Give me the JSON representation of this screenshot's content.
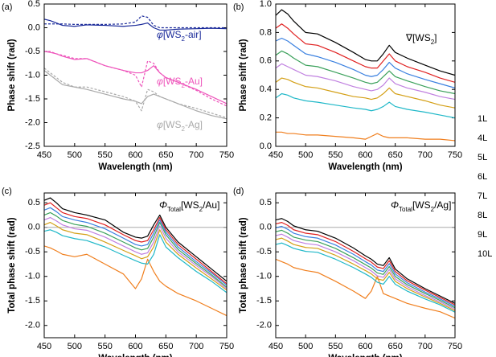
{
  "chart_data": [
    {
      "type": "line",
      "panel_label": "(a)",
      "xlabel": "Wavelength (nm)",
      "ylabel": "Phase shift (rad)",
      "x": [
        450,
        460,
        470,
        480,
        500,
        520,
        550,
        580,
        600,
        610,
        620,
        630,
        640,
        650,
        670,
        700,
        725,
        750
      ],
      "xlim": [
        450,
        750
      ],
      "xticks": [
        450,
        500,
        550,
        600,
        650,
        700,
        750
      ],
      "ylim": [
        -2.5,
        0.5
      ],
      "yticks": [
        -2.5,
        {
          "value": -2,
          "label": "-2.0"
        },
        -1.5,
        {
          "value": -1,
          "label": "-1.0"
        },
        -0.5,
        {
          "value": 0,
          "label": "0.0"
        },
        0.5
      ],
      "series": [
        {
          "color": "#1a2a9a",
          "dashed": false,
          "values": [
            0.18,
            0.15,
            0.1,
            0.05,
            0.03,
            0.06,
            0.05,
            0.03,
            0.05,
            0.07,
            0.1,
            0.0,
            -0.05,
            -0.05,
            -0.03,
            -0.02,
            -0.01,
            -0.02
          ]
        },
        {
          "color": "#1a2a9a",
          "dashed": true,
          "values": [
            0.08,
            0.08,
            0.08,
            0.08,
            0.07,
            0.07,
            0.07,
            0.08,
            0.12,
            0.25,
            0.22,
            0.05,
            0.0,
            0.0,
            0.0,
            0.0,
            0.0,
            0.0
          ]
        },
        {
          "color": "#ee55bb",
          "dashed": false,
          "values": [
            -0.5,
            -0.52,
            -0.55,
            -0.6,
            -0.67,
            -0.65,
            -0.8,
            -0.9,
            -0.95,
            -0.95,
            -0.9,
            -0.8,
            -0.95,
            -1.05,
            -1.15,
            -1.3,
            -1.45,
            -1.6
          ]
        },
        {
          "color": "#ee55bb",
          "dashed": true,
          "values": [
            -0.5,
            -0.5,
            -0.55,
            -0.58,
            -0.65,
            -0.65,
            -0.8,
            -0.9,
            -1.0,
            -1.25,
            -0.7,
            -0.75,
            -0.95,
            -1.05,
            -1.15,
            -1.32,
            -1.5,
            -1.65
          ]
        },
        {
          "color": "#aaaaaa",
          "dashed": false,
          "values": [
            -0.9,
            -1.0,
            -1.1,
            -1.2,
            -1.25,
            -1.3,
            -1.4,
            -1.5,
            -1.55,
            -1.6,
            -1.45,
            -1.4,
            -1.45,
            -1.5,
            -1.6,
            -1.75,
            -1.85,
            -1.92
          ]
        },
        {
          "color": "#aaaaaa",
          "dashed": true,
          "values": [
            -0.85,
            -0.95,
            -1.05,
            -1.15,
            -1.25,
            -1.25,
            -1.35,
            -1.45,
            -1.55,
            -1.75,
            -1.3,
            -1.35,
            -1.45,
            -1.5,
            -1.6,
            -1.7,
            -1.8,
            -1.9
          ]
        }
      ],
      "annotations": [
        {
          "color": "#1a2a9a",
          "parts": [
            {
              "text": "φ",
              "italic": true
            },
            {
              "text": "[WS"
            },
            {
              "text": "2",
              "sub": true
            },
            {
              "text": "-air]"
            }
          ]
        },
        {
          "color": "#ee55bb",
          "parts": [
            {
              "text": "φ",
              "italic": true
            },
            {
              "text": "[WS"
            },
            {
              "text": "2",
              "sub": true
            },
            {
              "text": "-Au]"
            }
          ]
        },
        {
          "color": "#aaaaaa",
          "parts": [
            {
              "text": "φ",
              "italic": true
            },
            {
              "text": "[WS"
            },
            {
              "text": "2",
              "sub": true
            },
            {
              "text": "-Ag]"
            }
          ]
        }
      ]
    },
    {
      "type": "line",
      "panel_label": "(b)",
      "xlabel": "Wavelength (nm)",
      "ylabel": "Phase shift (rad)",
      "x": [
        450,
        460,
        470,
        480,
        500,
        520,
        550,
        580,
        600,
        610,
        620,
        630,
        640,
        650,
        670,
        700,
        725,
        750
      ],
      "xlim": [
        450,
        750
      ],
      "xticks": [
        450,
        500,
        550,
        600,
        650,
        700,
        750
      ],
      "ylim": [
        0,
        1
      ],
      "yticks": [
        {
          "value": 0,
          "label": "0.0"
        },
        0.2,
        0.4,
        0.6,
        0.8,
        {
          "value": 1,
          "label": "1.0"
        }
      ],
      "legend": "right",
      "series": [
        {
          "name": "1L",
          "color": "#f07f1e",
          "values": [
            0.1,
            0.1,
            0.09,
            0.09,
            0.08,
            0.08,
            0.07,
            0.06,
            0.05,
            0.07,
            0.09,
            0.07,
            0.06,
            0.06,
            0.06,
            0.05,
            0.05,
            0.04
          ]
        },
        {
          "name": "4L",
          "color": "#1fb8c8",
          "values": [
            0.34,
            0.37,
            0.36,
            0.34,
            0.32,
            0.31,
            0.29,
            0.27,
            0.26,
            0.25,
            0.26,
            0.28,
            0.31,
            0.28,
            0.26,
            0.24,
            0.22,
            0.2
          ]
        },
        {
          "name": "5L",
          "color": "#d4a017",
          "values": [
            0.45,
            0.48,
            0.47,
            0.45,
            0.42,
            0.41,
            0.38,
            0.35,
            0.34,
            0.33,
            0.34,
            0.37,
            0.41,
            0.37,
            0.35,
            0.32,
            0.29,
            0.27
          ]
        },
        {
          "name": "6L",
          "color": "#c080e0",
          "values": [
            0.55,
            0.58,
            0.56,
            0.54,
            0.5,
            0.49,
            0.46,
            0.42,
            0.4,
            0.39,
            0.4,
            0.43,
            0.48,
            0.44,
            0.41,
            0.38,
            0.35,
            0.33
          ]
        },
        {
          "name": "7L",
          "color": "#3aa05a",
          "values": [
            0.64,
            0.67,
            0.65,
            0.62,
            0.57,
            0.56,
            0.52,
            0.48,
            0.45,
            0.44,
            0.45,
            0.49,
            0.53,
            0.49,
            0.46,
            0.42,
            0.39,
            0.37
          ]
        },
        {
          "name": "8L",
          "color": "#3a80e0",
          "values": [
            0.74,
            0.76,
            0.74,
            0.71,
            0.65,
            0.63,
            0.59,
            0.54,
            0.5,
            0.49,
            0.5,
            0.54,
            0.59,
            0.55,
            0.51,
            0.47,
            0.44,
            0.41
          ]
        },
        {
          "name": "9L",
          "color": "#e02020",
          "values": [
            0.83,
            0.86,
            0.83,
            0.79,
            0.72,
            0.71,
            0.66,
            0.6,
            0.56,
            0.55,
            0.55,
            0.6,
            0.65,
            0.6,
            0.56,
            0.52,
            0.48,
            0.45
          ]
        },
        {
          "name": "10L",
          "color": "#000000",
          "values": [
            0.92,
            0.96,
            0.93,
            0.88,
            0.8,
            0.79,
            0.73,
            0.66,
            0.61,
            0.6,
            0.6,
            0.65,
            0.71,
            0.66,
            0.62,
            0.57,
            0.53,
            0.5
          ]
        }
      ],
      "annotations": [
        {
          "color": "#000000",
          "parts": [
            {
              "text": "∇[WS"
            },
            {
              "text": "2",
              "sub": true
            },
            {
              "text": "]"
            }
          ]
        }
      ]
    },
    {
      "type": "line",
      "panel_label": "(c)",
      "xlabel": "Wavelength (nm)",
      "ylabel": "Total phase shift (rad)",
      "x": [
        450,
        460,
        470,
        480,
        500,
        520,
        550,
        580,
        600,
        610,
        620,
        630,
        640,
        650,
        670,
        700,
        725,
        750
      ],
      "xlim": [
        450,
        750
      ],
      "xticks": [
        450,
        500,
        550,
        600,
        650,
        700,
        750
      ],
      "ylim": [
        -2.25,
        0.7
      ],
      "yticks": [
        {
          "value": -2,
          "label": "-2.0"
        },
        -1.5,
        {
          "value": -1,
          "label": "-1.0"
        },
        -0.5,
        {
          "value": 0,
          "label": "0.0"
        },
        0.5
      ],
      "zero_line": true,
      "series": [
        {
          "color": "#f07f1e",
          "values": [
            -0.38,
            -0.42,
            -0.48,
            -0.55,
            -0.6,
            -0.55,
            -0.75,
            -0.95,
            -1.25,
            -1.05,
            -0.65,
            -0.9,
            -1.1,
            -1.2,
            -1.35,
            -1.5,
            -1.65,
            -1.8
          ]
        },
        {
          "color": "#1fb8c8",
          "values": [
            -0.08,
            -0.05,
            -0.1,
            -0.17,
            -0.23,
            -0.27,
            -0.4,
            -0.57,
            -0.68,
            -0.73,
            -0.75,
            -0.55,
            -0.15,
            -0.4,
            -0.62,
            -0.9,
            -1.1,
            -1.33
          ]
        },
        {
          "color": "#d4a017",
          "values": [
            0.05,
            0.1,
            0.03,
            -0.05,
            -0.12,
            -0.15,
            -0.3,
            -0.47,
            -0.58,
            -0.64,
            -0.6,
            -0.4,
            -0.05,
            -0.3,
            -0.55,
            -0.83,
            -1.05,
            -1.28
          ]
        },
        {
          "color": "#c080e0",
          "values": [
            0.15,
            0.2,
            0.13,
            0.05,
            -0.03,
            -0.06,
            -0.2,
            -0.38,
            -0.5,
            -0.55,
            -0.52,
            -0.3,
            0.03,
            -0.22,
            -0.5,
            -0.78,
            -1.0,
            -1.25
          ]
        },
        {
          "color": "#3aa05a",
          "values": [
            0.25,
            0.3,
            0.23,
            0.14,
            0.06,
            0.02,
            -0.12,
            -0.3,
            -0.42,
            -0.46,
            -0.43,
            -0.2,
            0.1,
            -0.15,
            -0.45,
            -0.74,
            -0.97,
            -1.22
          ]
        },
        {
          "color": "#3a80e0",
          "values": [
            0.35,
            0.4,
            0.32,
            0.22,
            0.15,
            0.1,
            -0.03,
            -0.22,
            -0.35,
            -0.38,
            -0.35,
            -0.12,
            0.15,
            -0.1,
            -0.4,
            -0.7,
            -0.93,
            -1.18
          ]
        },
        {
          "color": "#e02020",
          "values": [
            0.45,
            0.5,
            0.4,
            0.3,
            0.22,
            0.18,
            0.05,
            -0.15,
            -0.27,
            -0.3,
            -0.27,
            -0.05,
            0.2,
            -0.05,
            -0.35,
            -0.65,
            -0.9,
            -1.15
          ]
        },
        {
          "color": "#000000",
          "values": [
            0.55,
            0.6,
            0.5,
            0.38,
            0.3,
            0.25,
            0.15,
            -0.1,
            -0.2,
            -0.22,
            -0.18,
            0.05,
            0.25,
            0.0,
            -0.3,
            -0.6,
            -0.85,
            -1.1
          ]
        }
      ],
      "annotations": [
        {
          "color": "#000000",
          "parts": [
            {
              "text": "Φ",
              "italic": true
            },
            {
              "text": "Total",
              "sub": true
            },
            {
              "text": "[WS"
            },
            {
              "text": "2",
              "sub": true
            },
            {
              "text": "/Au]"
            }
          ]
        }
      ]
    },
    {
      "type": "line",
      "panel_label": "(d)",
      "xlabel": "Wavelength (nm)",
      "ylabel": "Total phase shift (rad)",
      "x": [
        450,
        460,
        470,
        480,
        500,
        520,
        550,
        580,
        600,
        610,
        620,
        630,
        640,
        650,
        670,
        700,
        725,
        750
      ],
      "xlim": [
        450,
        750
      ],
      "xticks": [
        450,
        500,
        550,
        600,
        650,
        700,
        750
      ],
      "ylim": [
        -2.25,
        0.7
      ],
      "yticks": [
        {
          "value": -2,
          "label": "-2.0"
        },
        -1.5,
        {
          "value": -1,
          "label": "-1.0"
        },
        -0.5,
        {
          "value": 0,
          "label": "0.0"
        },
        0.5
      ],
      "zero_line": true,
      "series": [
        {
          "color": "#f07f1e",
          "values": [
            -0.65,
            -0.7,
            -0.75,
            -0.82,
            -0.88,
            -0.92,
            -1.1,
            -1.3,
            -1.45,
            -1.3,
            -1.0,
            -1.35,
            -1.4,
            -1.45,
            -1.55,
            -1.65,
            -1.72,
            -1.85
          ]
        },
        {
          "color": "#1fb8c8",
          "values": [
            -0.35,
            -0.32,
            -0.37,
            -0.43,
            -0.49,
            -0.51,
            -0.65,
            -0.82,
            -0.95,
            -1.02,
            -1.12,
            -1.16,
            -1.0,
            -1.16,
            -1.3,
            -1.46,
            -1.58,
            -1.73
          ]
        },
        {
          "color": "#d4a017",
          "values": [
            -0.25,
            -0.22,
            -0.28,
            -0.35,
            -0.41,
            -0.43,
            -0.57,
            -0.75,
            -0.88,
            -0.95,
            -1.05,
            -1.08,
            -0.92,
            -1.1,
            -1.25,
            -1.42,
            -1.55,
            -1.7
          ]
        },
        {
          "color": "#c080e0",
          "values": [
            -0.17,
            -0.14,
            -0.2,
            -0.27,
            -0.33,
            -0.36,
            -0.5,
            -0.68,
            -0.82,
            -0.89,
            -0.99,
            -1.02,
            -0.86,
            -1.05,
            -1.21,
            -1.39,
            -1.52,
            -1.67
          ]
        },
        {
          "color": "#3aa05a",
          "values": [
            -0.09,
            -0.06,
            -0.12,
            -0.2,
            -0.26,
            -0.29,
            -0.43,
            -0.62,
            -0.76,
            -0.83,
            -0.93,
            -0.96,
            -0.8,
            -1.0,
            -1.17,
            -1.35,
            -1.49,
            -1.64
          ]
        },
        {
          "color": "#3a80e0",
          "values": [
            -0.01,
            0.02,
            -0.04,
            -0.12,
            -0.19,
            -0.22,
            -0.36,
            -0.55,
            -0.7,
            -0.77,
            -0.87,
            -0.9,
            -0.74,
            -0.95,
            -1.13,
            -1.32,
            -1.46,
            -1.61
          ]
        },
        {
          "color": "#e02020",
          "values": [
            0.07,
            0.1,
            0.04,
            -0.05,
            -0.12,
            -0.15,
            -0.29,
            -0.49,
            -0.64,
            -0.71,
            -0.81,
            -0.84,
            -0.68,
            -0.9,
            -1.09,
            -1.28,
            -1.43,
            -1.58
          ]
        },
        {
          "color": "#000000",
          "values": [
            0.15,
            0.18,
            0.12,
            0.03,
            -0.05,
            -0.08,
            -0.22,
            -0.42,
            -0.58,
            -0.65,
            -0.75,
            -0.78,
            -0.62,
            -0.85,
            -1.05,
            -1.25,
            -1.4,
            -1.55
          ]
        }
      ],
      "annotations": [
        {
          "color": "#000000",
          "parts": [
            {
              "text": "Φ",
              "italic": true
            },
            {
              "text": "Total",
              "sub": true
            },
            {
              "text": "[WS"
            },
            {
              "text": "2",
              "sub": true
            },
            {
              "text": "/Ag]"
            }
          ]
        }
      ]
    }
  ]
}
